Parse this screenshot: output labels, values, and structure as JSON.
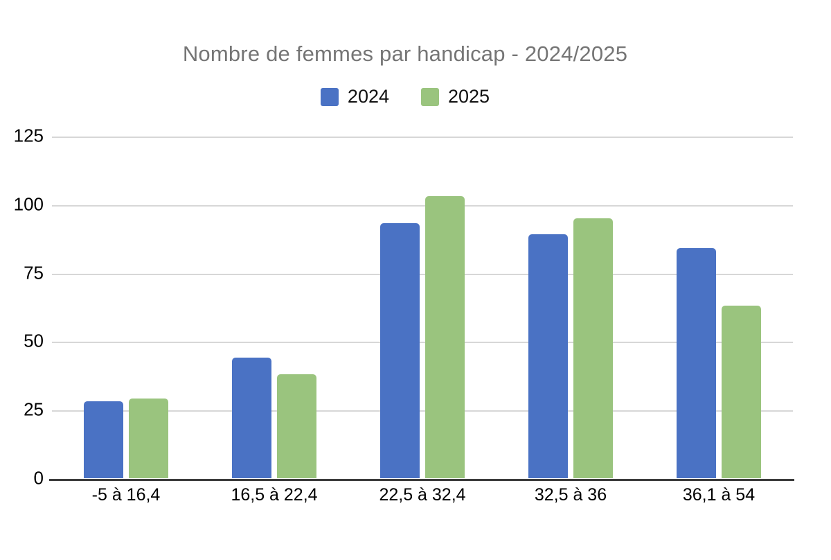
{
  "colors": {
    "series_2024": "#4a72c4",
    "series_2025": "#9ac47e",
    "title_text": "#757575",
    "gridline": "#d7d7d7",
    "axis_line": "#3c3c3c",
    "tick_text": "#000000"
  },
  "chart_data": {
    "type": "bar",
    "title": "Nombre de femmes par handicap - 2024/2025",
    "categories": [
      "-5 à 16,4",
      "16,5 à 22,4",
      "22,5 à 32,4",
      "32,5 à 36",
      "36,1 à 54"
    ],
    "series": [
      {
        "name": "2024",
        "color": "#4a72c4",
        "values": [
          28,
          44,
          93,
          89,
          84
        ]
      },
      {
        "name": "2025",
        "color": "#9ac47e",
        "values": [
          29,
          38,
          103,
          95,
          63
        ]
      }
    ],
    "xlabel": "",
    "ylabel": "",
    "ylim": [
      0,
      125
    ],
    "yticks": [
      0,
      25,
      50,
      75,
      100,
      125
    ],
    "grid": true,
    "legend_position": "top-center",
    "legend_labels": [
      "2024",
      "2025"
    ]
  }
}
